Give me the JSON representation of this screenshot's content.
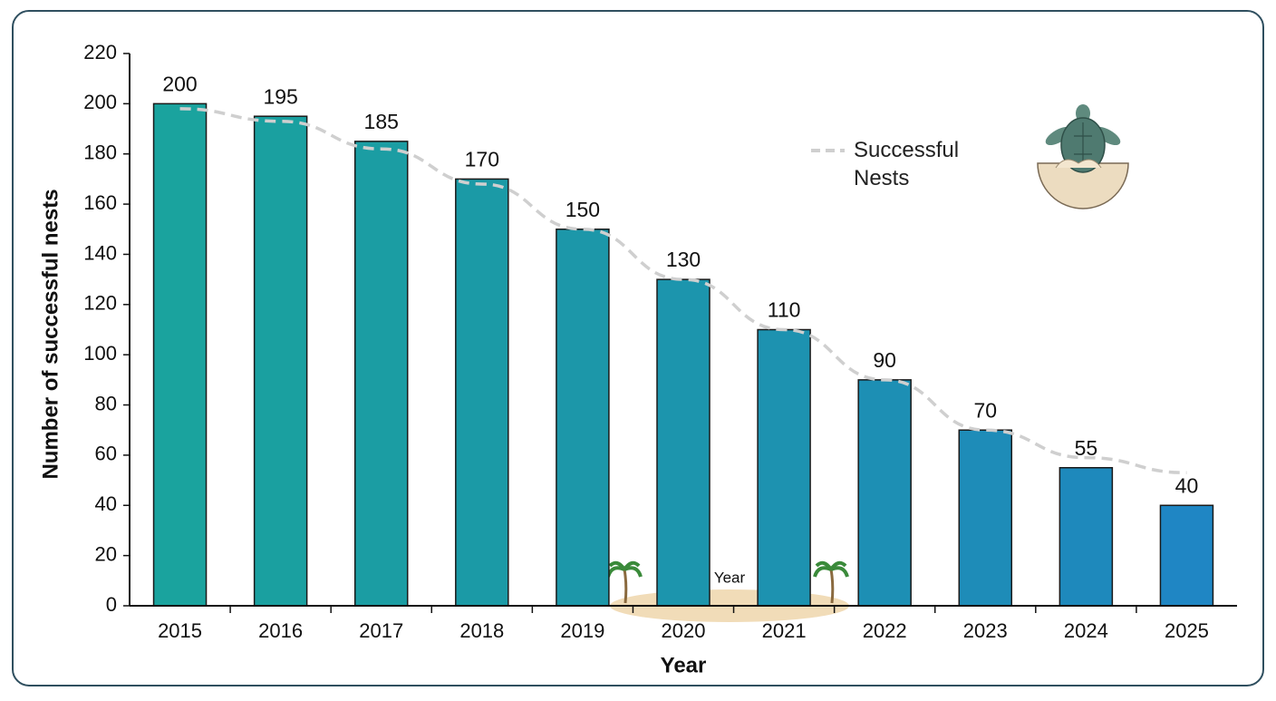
{
  "chart_data": {
    "type": "bar",
    "x_label": "Year",
    "y_label": "Number of successful nests",
    "categories": [
      "2015",
      "2016",
      "2017",
      "2018",
      "2019",
      "2020",
      "2021",
      "2022",
      "2023",
      "2024",
      "2025"
    ],
    "values": [
      200,
      195,
      185,
      170,
      150,
      130,
      110,
      90,
      70,
      55,
      40
    ],
    "colors": [
      "#1aa39e",
      "#1aa0a0",
      "#1b9da3",
      "#1b9aa6",
      "#1c97a9",
      "#1c95ad",
      "#1d92b0",
      "#1d8fb4",
      "#1e8cb8",
      "#1e89bc",
      "#1f86c4"
    ],
    "line": {
      "name": "Successful Nests",
      "color": "#cfcfcf",
      "dashed": true,
      "values": [
        198,
        193,
        182,
        168,
        150,
        130,
        110,
        90,
        70,
        59,
        53
      ]
    },
    "annotation": "Year",
    "ylim": [
      0,
      220
    ],
    "yticks": [
      0,
      20,
      40,
      60,
      80,
      100,
      120,
      140,
      160,
      180,
      200,
      220
    ],
    "legend": "top-right"
  }
}
